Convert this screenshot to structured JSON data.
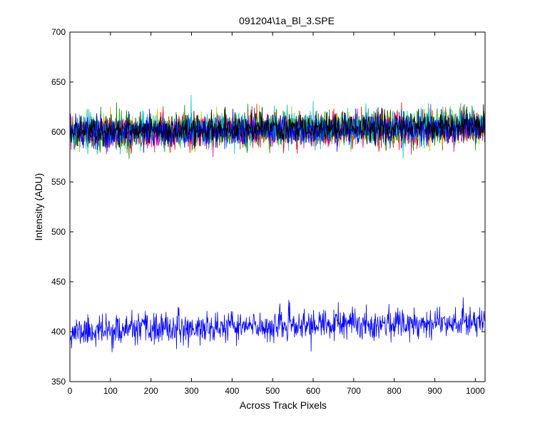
{
  "chart_data": {
    "type": "line",
    "title": "091204\\1a_Bl_3.SPE",
    "xlabel": "Across Track Pixels",
    "ylabel": "Intensity (ADU)",
    "xlim": [
      0,
      1024
    ],
    "ylim": [
      350,
      700
    ],
    "xticks": [
      0,
      100,
      200,
      300,
      400,
      500,
      600,
      700,
      800,
      900,
      1000
    ],
    "yticks": [
      350,
      400,
      450,
      500,
      550,
      600,
      650,
      700
    ],
    "grid": false,
    "legend": "none",
    "points_per_series": 1024,
    "series": [
      {
        "color": "#0000ff",
        "start": 400,
        "end": 411,
        "noise": 7.5,
        "seed": 11,
        "draw_order": 1
      },
      {
        "color": "#ff0000",
        "start": 598,
        "end": 604,
        "noise": 8.0,
        "seed": 23,
        "draw_order": 2
      },
      {
        "color": "#bfbf00",
        "start": 600,
        "end": 605,
        "noise": 8.0,
        "seed": 37,
        "draw_order": 3
      },
      {
        "color": "#008000",
        "start": 601,
        "end": 606,
        "noise": 8.5,
        "seed": 41,
        "draw_order": 4
      },
      {
        "color": "#bf00bf",
        "start": 599,
        "end": 604,
        "noise": 7.5,
        "seed": 53,
        "draw_order": 5
      },
      {
        "color": "#00bfbf",
        "start": 600,
        "end": 606,
        "noise": 8.5,
        "seed": 67,
        "draw_order": 6
      },
      {
        "color": "#0000ff",
        "start": 599,
        "end": 604,
        "noise": 7.5,
        "seed": 79,
        "draw_order": 7
      },
      {
        "color": "#000000",
        "start": 600,
        "end": 606,
        "noise": 7.0,
        "seed": 97,
        "draw_order": 8
      }
    ]
  }
}
